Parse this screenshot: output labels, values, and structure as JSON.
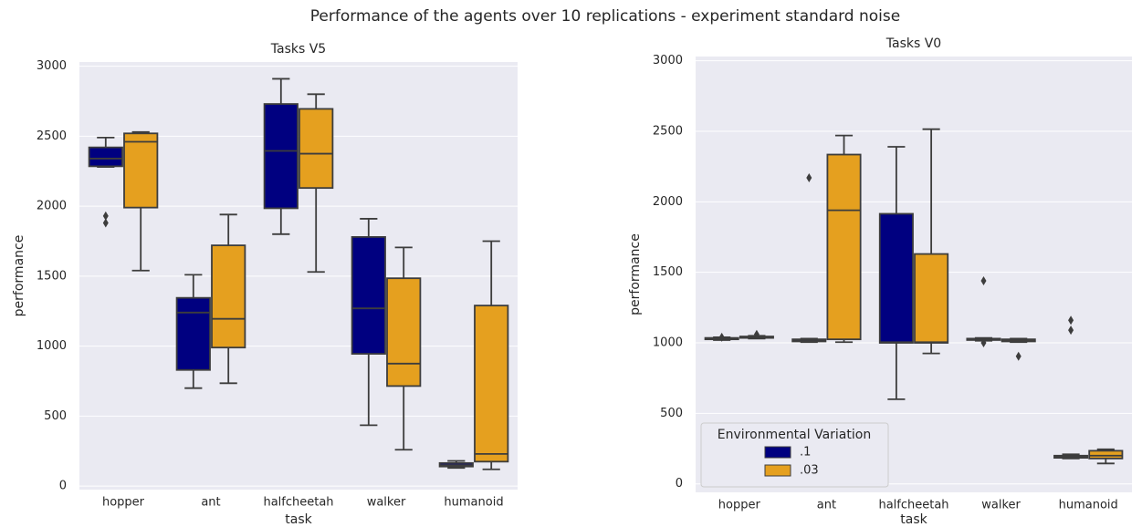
{
  "title": "Performance of the agents over 10 replications - experiment standard noise",
  "chart_data": [
    {
      "type": "box",
      "title": "Tasks V5",
      "xlabel": "task",
      "ylabel": "performance",
      "categories": [
        "hopper",
        "ant",
        "halfcheetah",
        "walker",
        "humanoid"
      ],
      "ylim": [
        -25,
        3030
      ],
      "yticks": [
        0,
        500,
        1000,
        1500,
        2000,
        2500,
        3000
      ],
      "grid": true,
      "series": [
        {
          "color": "#000080",
          "values": [
            {
              "min": 2280,
              "q1": 2285,
              "median": 2340,
              "q3": 2420,
              "max": 2490,
              "outliers": [
                1880,
                1930
              ]
            },
            {
              "min": 700,
              "q1": 830,
              "median": 1240,
              "q3": 1345,
              "max": 1510,
              "outliers": []
            },
            {
              "min": 1800,
              "q1": 1985,
              "median": 2395,
              "q3": 2730,
              "max": 2910,
              "outliers": []
            },
            {
              "min": 435,
              "q1": 945,
              "median": 1270,
              "q3": 1780,
              "max": 1910,
              "outliers": []
            },
            {
              "min": 130,
              "q1": 140,
              "median": 150,
              "q3": 165,
              "max": 180,
              "outliers": []
            }
          ]
        },
        {
          "color": "#e5a01f",
          "values": [
            {
              "min": 1540,
              "q1": 1990,
              "median": 2460,
              "q3": 2520,
              "max": 2530,
              "outliers": []
            },
            {
              "min": 735,
              "q1": 990,
              "median": 1195,
              "q3": 1720,
              "max": 1940,
              "outliers": []
            },
            {
              "min": 1530,
              "q1": 2130,
              "median": 2375,
              "q3": 2695,
              "max": 2800,
              "outliers": []
            },
            {
              "min": 260,
              "q1": 715,
              "median": 875,
              "q3": 1485,
              "max": 1705,
              "outliers": []
            },
            {
              "min": 120,
              "q1": 175,
              "median": 230,
              "q3": 1290,
              "max": 1750,
              "outliers": []
            }
          ]
        }
      ]
    },
    {
      "type": "box",
      "title": "Tasks V0",
      "xlabel": "task",
      "ylabel": "performance",
      "categories": [
        "hopper",
        "ant",
        "halfcheetah",
        "walker",
        "humanoid"
      ],
      "ylim": [
        -60,
        3030
      ],
      "yticks": [
        0,
        500,
        1000,
        1500,
        2000,
        2500,
        3000
      ],
      "grid": true,
      "legend": "lower left",
      "legend_title": "Environmental Variation",
      "series": [
        {
          "name": ".1",
          "color": "#000080",
          "values": [
            {
              "min": 1020,
              "q1": 1025,
              "median": 1030,
              "q3": 1035,
              "max": 1040,
              "outliers": [
                1040
              ]
            },
            {
              "min": 1005,
              "q1": 1010,
              "median": 1020,
              "q3": 1025,
              "max": 1030,
              "outliers": [
                2170
              ]
            },
            {
              "min": 600,
              "q1": 1000,
              "median": 1005,
              "q3": 1915,
              "max": 2390,
              "outliers": []
            },
            {
              "min": 1015,
              "q1": 1020,
              "median": 1025,
              "q3": 1030,
              "max": 1035,
              "outliers": [
                1000,
                1440
              ]
            },
            {
              "min": 180,
              "q1": 185,
              "median": 195,
              "q3": 200,
              "max": 210,
              "outliers": [
                1090,
                1160
              ]
            }
          ]
        },
        {
          "name": ".03",
          "color": "#e5a01f",
          "values": [
            {
              "min": 1030,
              "q1": 1035,
              "median": 1040,
              "q3": 1045,
              "max": 1050,
              "outliers": [
                1060
              ]
            },
            {
              "min": 1005,
              "q1": 1025,
              "median": 1940,
              "q3": 2335,
              "max": 2470,
              "outliers": []
            },
            {
              "min": 925,
              "q1": 1000,
              "median": 1005,
              "q3": 1630,
              "max": 2515,
              "outliers": []
            },
            {
              "min": 1005,
              "q1": 1010,
              "median": 1020,
              "q3": 1025,
              "max": 1030,
              "outliers": [
                905
              ]
            },
            {
              "min": 145,
              "q1": 180,
              "median": 200,
              "q3": 235,
              "max": 245,
              "outliers": []
            }
          ]
        }
      ]
    }
  ]
}
